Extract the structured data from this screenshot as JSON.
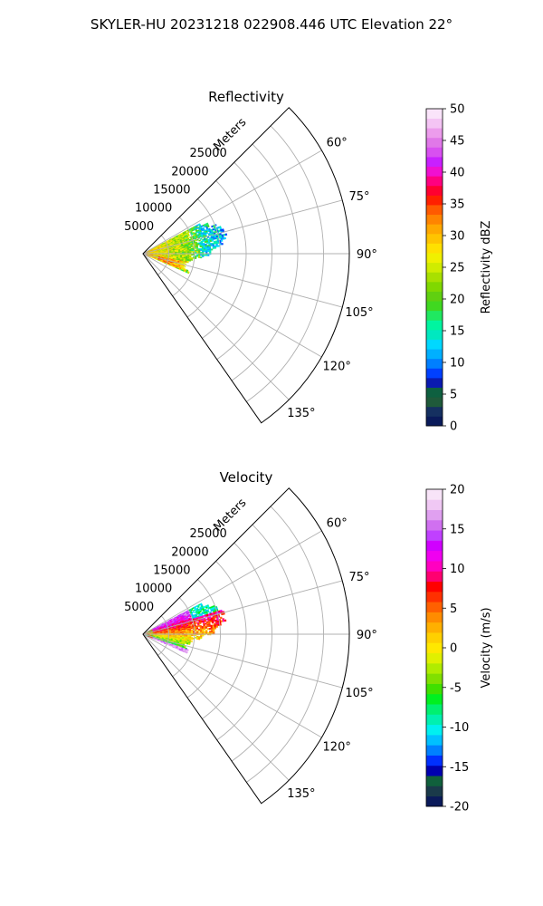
{
  "figure": {
    "title": "SKYLER-HU  20231218  022908.446 UTC Elevation 22°"
  },
  "chart_data": [
    {
      "type": "heatmap",
      "subtype": "polar-sector",
      "title": "Reflectivity",
      "radial_label": "Meters",
      "radial_ticks": [
        5000,
        10000,
        15000,
        20000,
        25000
      ],
      "radial_range": [
        0,
        40000
      ],
      "azimuth_range": [
        45,
        145
      ],
      "azimuth_ticks": [
        "60°",
        "75°",
        "90°",
        "105°",
        "120°",
        "135°"
      ],
      "azimuth_tick_values": [
        60,
        75,
        90,
        105,
        120,
        135
      ],
      "grid": true,
      "echo_extent": {
        "min_az": 62,
        "max_az": 113,
        "max_range_m": 15500
      },
      "colorbar": {
        "label": "Reflectivity dBZ",
        "range": [
          0,
          50
        ],
        "ticks": [
          0,
          5,
          10,
          15,
          20,
          25,
          30,
          35,
          40,
          45,
          50
        ],
        "colormap": [
          "#0a1a5a",
          "#153060",
          "#1f5a3a",
          "#0e6040",
          "#0a1ab0",
          "#0040ff",
          "#007fff",
          "#00b0ff",
          "#00d8ff",
          "#00e8c0",
          "#00f5a0",
          "#20e860",
          "#40d820",
          "#60d010",
          "#80d800",
          "#a8e000",
          "#d0ec00",
          "#f0f000",
          "#ffe000",
          "#ffc400",
          "#ffa800",
          "#ff8400",
          "#ff5a00",
          "#ff2000",
          "#ff0030",
          "#ff0080",
          "#f010d0",
          "#c820ff",
          "#d850f0",
          "#e078e8",
          "#ec9cec",
          "#f4c4f4",
          "#fae4fa"
        ]
      }
    },
    {
      "type": "heatmap",
      "subtype": "polar-sector",
      "title": "Velocity",
      "radial_label": "Meters",
      "radial_ticks": [
        5000,
        10000,
        15000,
        20000,
        25000
      ],
      "radial_range": [
        0,
        40000
      ],
      "azimuth_range": [
        45,
        145
      ],
      "azimuth_ticks": [
        "60°",
        "75°",
        "90°",
        "105°",
        "120°",
        "135°"
      ],
      "azimuth_tick_values": [
        60,
        75,
        90,
        105,
        120,
        135
      ],
      "grid": true,
      "echo_extent": {
        "min_az": 62,
        "max_az": 113,
        "max_range_m": 15500
      },
      "colorbar": {
        "label": "Velocity (m/s)",
        "range": [
          -20,
          20
        ],
        "ticks": [
          -20,
          -15,
          -10,
          -5,
          0,
          5,
          10,
          15,
          20
        ],
        "colormap": [
          "#0a1a5a",
          "#1a3a4a",
          "#10603c",
          "#0000b0",
          "#0030ff",
          "#0080ff",
          "#00c0ff",
          "#00f0f0",
          "#00f0b0",
          "#00f070",
          "#00f020",
          "#40e000",
          "#80e000",
          "#b0ec00",
          "#e0f000",
          "#ffe800",
          "#ffd000",
          "#ffb000",
          "#ff8c00",
          "#ff6000",
          "#ff3000",
          "#ff0000",
          "#ff0070",
          "#ff00c0",
          "#f000f0",
          "#d000ff",
          "#c040ff",
          "#d070f0",
          "#e0a0f0",
          "#f0c8f4",
          "#f8e4f8"
        ]
      }
    }
  ]
}
